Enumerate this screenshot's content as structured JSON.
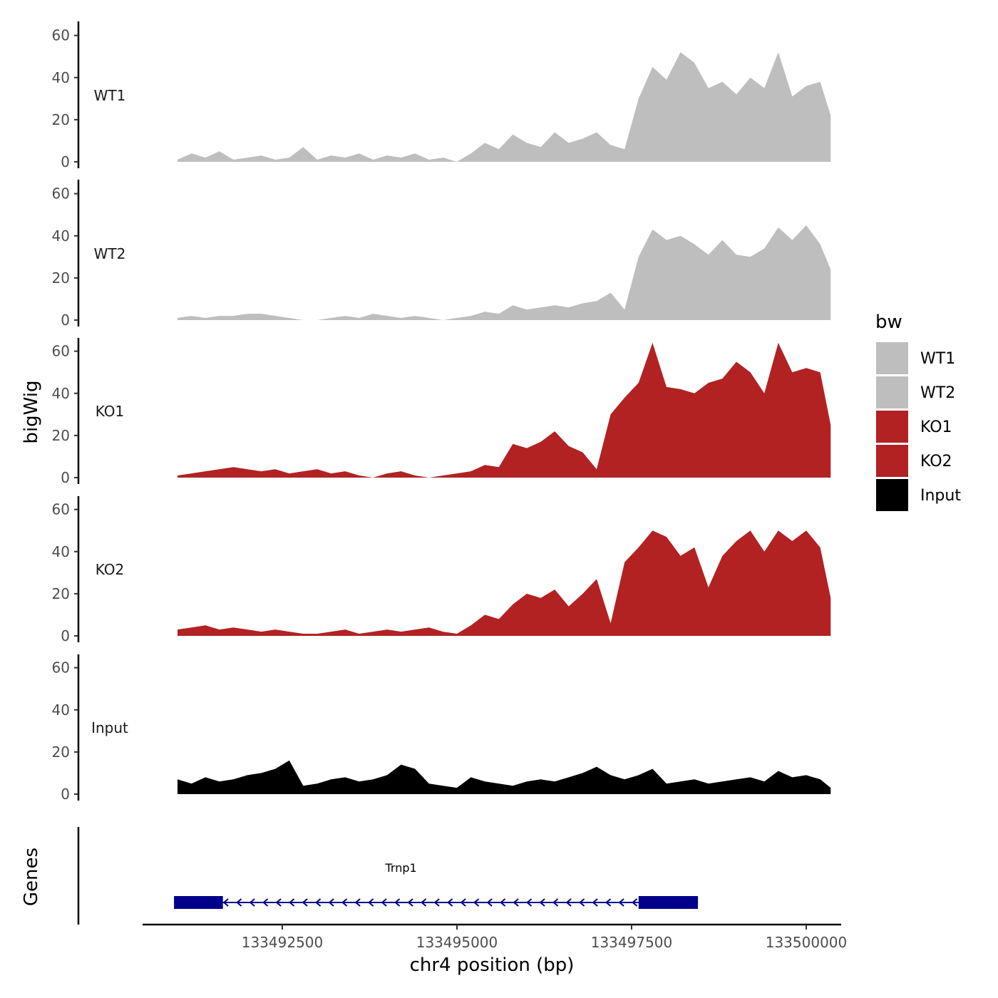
{
  "chart_data": {
    "type": "area",
    "ylabel": "bigWig",
    "xlabel": "chr4 position (bp)",
    "gene_track_label": "Genes",
    "xlim": [
      133490500,
      133500500
    ],
    "x_ticks": [
      133492500,
      133495000,
      133497500,
      133500000
    ],
    "x_tick_labels": [
      "133492500",
      "133495000",
      "133497500",
      "133500000"
    ],
    "ylim": [
      0,
      67
    ],
    "y_ticks": [
      0,
      20,
      40,
      60
    ],
    "y_tick_labels": [
      "0",
      "20",
      "40",
      "60"
    ],
    "legend": {
      "title": "bw",
      "position": "right",
      "entries": [
        {
          "name": "WT1",
          "color": "#bebebe"
        },
        {
          "name": "WT2",
          "color": "#bebebe"
        },
        {
          "name": "KO1",
          "color": "#b22222"
        },
        {
          "name": "KO2",
          "color": "#b22222"
        },
        {
          "name": "Input",
          "color": "#000000"
        }
      ]
    },
    "x_positions": [
      133491000,
      133491200,
      133491400,
      133491600,
      133491800,
      133492000,
      133492200,
      133492400,
      133492600,
      133492800,
      133493000,
      133493200,
      133493400,
      133493600,
      133493800,
      133494000,
      133494200,
      133494400,
      133494600,
      133494800,
      133495000,
      133495200,
      133495400,
      133495600,
      133495800,
      133496000,
      133496200,
      133496400,
      133496600,
      133496800,
      133497000,
      133497200,
      133497400,
      133497600,
      133497800,
      133498000,
      133498200,
      133498400,
      133498600,
      133498800,
      133499000,
      133499200,
      133499400,
      133499600,
      133499800,
      133500000,
      133500200,
      133500350
    ],
    "series": [
      {
        "name": "WT1",
        "color": "#bebebe",
        "values": [
          1,
          4,
          2,
          5,
          1,
          2,
          3,
          1,
          2,
          7,
          1,
          3,
          2,
          4,
          1,
          3,
          2,
          4,
          1,
          2,
          0,
          4,
          9,
          6,
          13,
          9,
          7,
          14,
          9,
          11,
          14,
          8,
          6,
          30,
          45,
          39,
          52,
          47,
          35,
          38,
          32,
          40,
          35,
          52,
          31,
          36,
          38,
          22
        ]
      },
      {
        "name": "WT2",
        "color": "#bebebe",
        "values": [
          1,
          2,
          1,
          2,
          2,
          3,
          3,
          2,
          1,
          0,
          0,
          1,
          2,
          1,
          3,
          2,
          1,
          2,
          1,
          0,
          1,
          2,
          4,
          3,
          7,
          5,
          6,
          7,
          6,
          8,
          9,
          13,
          5,
          30,
          43,
          38,
          40,
          36,
          31,
          38,
          31,
          30,
          34,
          44,
          38,
          45,
          36,
          24
        ]
      },
      {
        "name": "KO1",
        "color": "#b22222",
        "values": [
          1,
          2,
          3,
          4,
          5,
          4,
          3,
          4,
          2,
          3,
          4,
          2,
          3,
          1,
          0,
          2,
          3,
          1,
          0,
          1,
          2,
          3,
          6,
          5,
          16,
          14,
          17,
          22,
          15,
          12,
          4,
          30,
          38,
          45,
          64,
          43,
          42,
          40,
          45,
          47,
          55,
          50,
          40,
          64,
          50,
          52,
          50,
          25
        ]
      },
      {
        "name": "KO2",
        "color": "#b22222",
        "values": [
          3,
          4,
          5,
          3,
          4,
          3,
          2,
          3,
          2,
          1,
          1,
          2,
          3,
          1,
          2,
          3,
          2,
          3,
          4,
          2,
          1,
          5,
          10,
          8,
          15,
          20,
          18,
          22,
          14,
          20,
          27,
          6,
          35,
          42,
          50,
          47,
          38,
          42,
          23,
          38,
          45,
          50,
          40,
          50,
          45,
          50,
          42,
          18
        ]
      },
      {
        "name": "Input",
        "color": "#000000",
        "values": [
          7,
          5,
          8,
          6,
          7,
          9,
          10,
          12,
          16,
          4,
          5,
          7,
          8,
          6,
          7,
          9,
          14,
          12,
          5,
          4,
          3,
          8,
          6,
          5,
          4,
          6,
          7,
          6,
          8,
          10,
          13,
          9,
          7,
          9,
          12,
          5,
          6,
          7,
          5,
          6,
          7,
          8,
          6,
          11,
          8,
          9,
          7,
          3
        ]
      }
    ],
    "gene": {
      "name": "Trnp1",
      "strand": "-",
      "start": 133490950,
      "end": 133498450,
      "exons": [
        [
          133490950,
          133491650
        ],
        [
          133497600,
          133498450
        ]
      ]
    }
  }
}
